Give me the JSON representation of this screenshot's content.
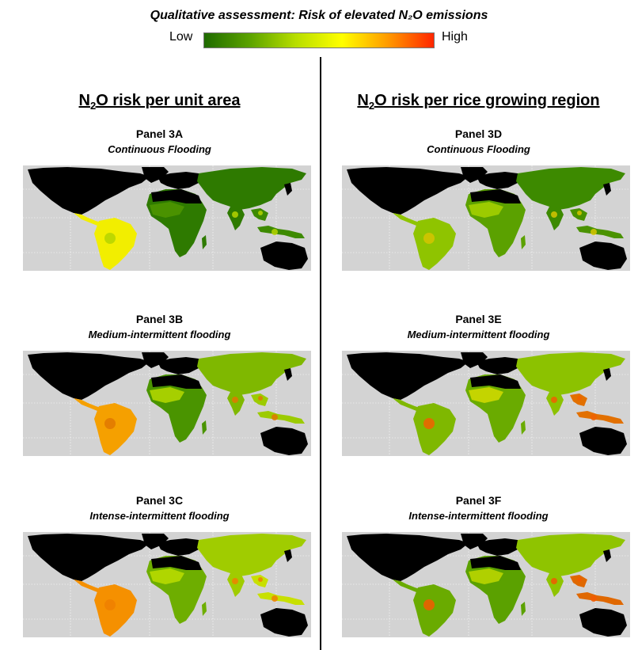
{
  "legend": {
    "title": "Qualitative assessment: Risk of elevated N₂O emissions",
    "low_label": "Low",
    "high_label": "High",
    "gradient_colors": [
      "#1f6b00",
      "#5ca300",
      "#b8de00",
      "#ffff00",
      "#ff9a00",
      "#ff2600"
    ]
  },
  "columns": [
    {
      "title_prefix": "N",
      "title_sub": "2",
      "title_suffix": "O risk per unit area"
    },
    {
      "title_prefix": "N",
      "title_sub": "2",
      "title_suffix": "O risk per rice growing region"
    }
  ],
  "panels": [
    {
      "id": "3A",
      "title": "Panel 3A",
      "subtitle": "Continuous Flooding",
      "colors": {
        "americas": "#f2ee00",
        "africa": "#2e7a00",
        "africa_west": "#4a9200",
        "asia": "#2e7a00",
        "southeast_asia": "#3d8a00",
        "highlight": "#b5d400"
      }
    },
    {
      "id": "3B",
      "title": "Panel 3B",
      "subtitle": "Medium-intermittent flooding",
      "colors": {
        "americas": "#f5a000",
        "africa": "#4a9400",
        "africa_west": "#a6cf00",
        "asia": "#7fb800",
        "southeast_asia": "#9ccb00",
        "highlight": "#e07800"
      }
    },
    {
      "id": "3C",
      "title": "Panel 3C",
      "subtitle": "Intense-intermittent flooding",
      "colors": {
        "americas": "#f59000",
        "africa": "#6eae00",
        "africa_west": "#b0d600",
        "asia": "#a0cc00",
        "southeast_asia": "#c8e000",
        "highlight": "#ee8000"
      }
    },
    {
      "id": "3D",
      "title": "Panel 3D",
      "subtitle": "Continuous Flooding",
      "colors": {
        "americas": "#8fc400",
        "africa": "#5ba100",
        "africa_west": "#9ccb00",
        "asia": "#3d8a00",
        "southeast_asia": "#4a9200",
        "highlight": "#d6c400"
      }
    },
    {
      "id": "3E",
      "title": "Panel 3E",
      "subtitle": "Medium-intermittent flooding",
      "colors": {
        "americas": "#7fb800",
        "africa": "#6aab00",
        "africa_west": "#c4d400",
        "asia": "#8cc200",
        "southeast_asia": "#e27000",
        "highlight": "#f06000"
      }
    },
    {
      "id": "3F",
      "title": "Panel 3F",
      "subtitle": "Intense-intermittent flooding",
      "colors": {
        "americas": "#6aab00",
        "africa": "#5ba100",
        "africa_west": "#b0d000",
        "asia": "#8fc400",
        "southeast_asia": "#e06800",
        "highlight": "#f25a00"
      }
    }
  ]
}
